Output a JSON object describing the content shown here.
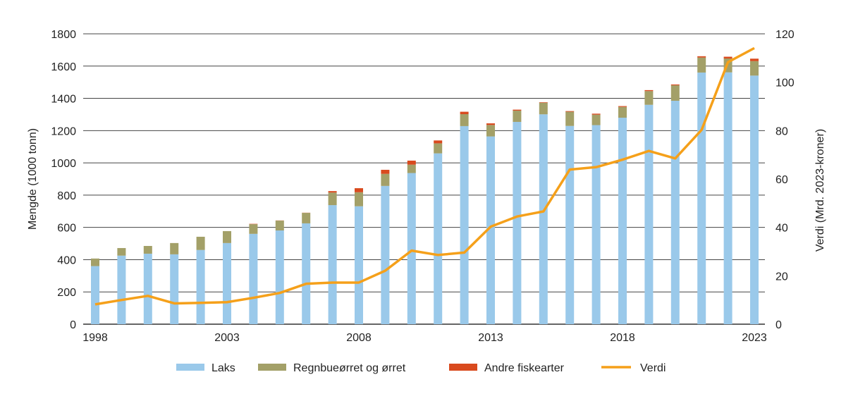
{
  "chart_data": {
    "type": "bar",
    "stacked": true,
    "x": [
      1998,
      1999,
      2000,
      2001,
      2002,
      2003,
      2004,
      2005,
      2006,
      2007,
      2008,
      2009,
      2010,
      2011,
      2012,
      2013,
      2014,
      2015,
      2016,
      2017,
      2018,
      2019,
      2020,
      2021,
      2022,
      2023
    ],
    "x_tick_labels": [
      "1998",
      "2003",
      "2008",
      "2013",
      "2018",
      "2023"
    ],
    "ylabel": "Mengde (1000 tonn)",
    "y2label": "Verdi (Mrd. 2023-kroner)",
    "ylim": [
      0,
      1800
    ],
    "y_ticks": [
      0,
      200,
      400,
      600,
      800,
      1000,
      1200,
      1400,
      1600,
      1800
    ],
    "y2lim": [
      0,
      120
    ],
    "y2_ticks": [
      0,
      20,
      40,
      60,
      80,
      100,
      120
    ],
    "grid": true,
    "legend_position": "bottom",
    "series": [
      {
        "name": "Laks",
        "type": "bar",
        "axis": "left",
        "color": "#9ac9ea",
        "values": [
          360,
          425,
          437,
          433,
          460,
          503,
          560,
          581,
          625,
          738,
          731,
          857,
          937,
          1059,
          1228,
          1164,
          1254,
          1301,
          1229,
          1234,
          1280,
          1360,
          1385,
          1560,
          1561,
          1541
        ]
      },
      {
        "name": "Regnbueørret og ørret",
        "type": "bar",
        "axis": "left",
        "color": "#a3a068",
        "values": [
          47,
          47,
          48,
          70,
          82,
          74,
          60,
          61,
          65,
          78,
          87,
          75,
          52,
          62,
          74,
          71,
          70,
          72,
          88,
          65,
          67,
          85,
          96,
          93,
          86,
          90
        ]
      },
      {
        "name": "Andre fiskearter",
        "type": "bar",
        "axis": "left",
        "color": "#d94a1e",
        "values": [
          0,
          0,
          0,
          0,
          0,
          0,
          2,
          1,
          1,
          9,
          25,
          25,
          25,
          18,
          15,
          10,
          6,
          3,
          4,
          6,
          5,
          6,
          5,
          8,
          11,
          15
        ]
      },
      {
        "name": "Verdi",
        "type": "line",
        "axis": "right",
        "color": "#f5a01a",
        "values": [
          8.2,
          10.0,
          11.7,
          8.6,
          8.8,
          9.1,
          10.9,
          12.9,
          16.7,
          17.2,
          17.2,
          22.1,
          30.4,
          28.6,
          29.6,
          40.3,
          44.5,
          46.6,
          63.9,
          64.9,
          68.0,
          71.6,
          68.5,
          80.3,
          108.3,
          114.1
        ]
      }
    ]
  }
}
